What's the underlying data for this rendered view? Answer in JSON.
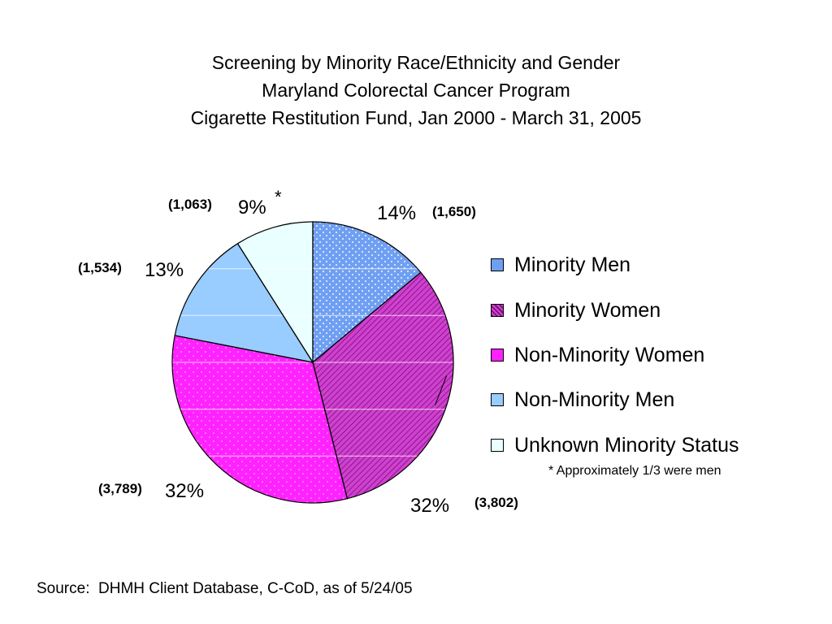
{
  "chart_data": {
    "type": "pie",
    "title": [
      "Screening by Minority Race/Ethnicity and Gender",
      "Maryland Colorectal Cancer Program",
      "Cigarette Restitution Fund, Jan 2000 - March 31, 2005"
    ],
    "slices": [
      {
        "label": "Minority Men",
        "percent_label": "14%",
        "count_label": "(1,650)",
        "value": 1650,
        "color": "#6f9ff2",
        "pattern": "dots"
      },
      {
        "label": "Minority Women",
        "percent_label": "32%",
        "count_label": "(3,802)",
        "value": 3802,
        "color": "#cc33cc",
        "pattern": "diagonal-hatch"
      },
      {
        "label": "Non-Minority Women",
        "percent_label": "32%",
        "count_label": "(3,789)",
        "value": 3789,
        "color": "#ff22ff",
        "pattern": "fine-dots"
      },
      {
        "label": "Non-Minority Men",
        "percent_label": "13%",
        "count_label": "(1,534)",
        "value": 1534,
        "color": "#99ccff",
        "pattern": "solid"
      },
      {
        "label": "Unknown Minority Status",
        "percent_label": "9%",
        "count_label": "(1,063)",
        "value": 1063,
        "color": "#eaffff",
        "pattern": "solid",
        "asterisk": "*"
      }
    ],
    "start_angle": "12 o'clock",
    "direction": "clockwise",
    "legend_position": "right",
    "gridlines": true
  },
  "footnote": "* Approximately 1/3 were men",
  "source": "Source:  DHMH Client Database, C-CoD, as of 5/24/05"
}
